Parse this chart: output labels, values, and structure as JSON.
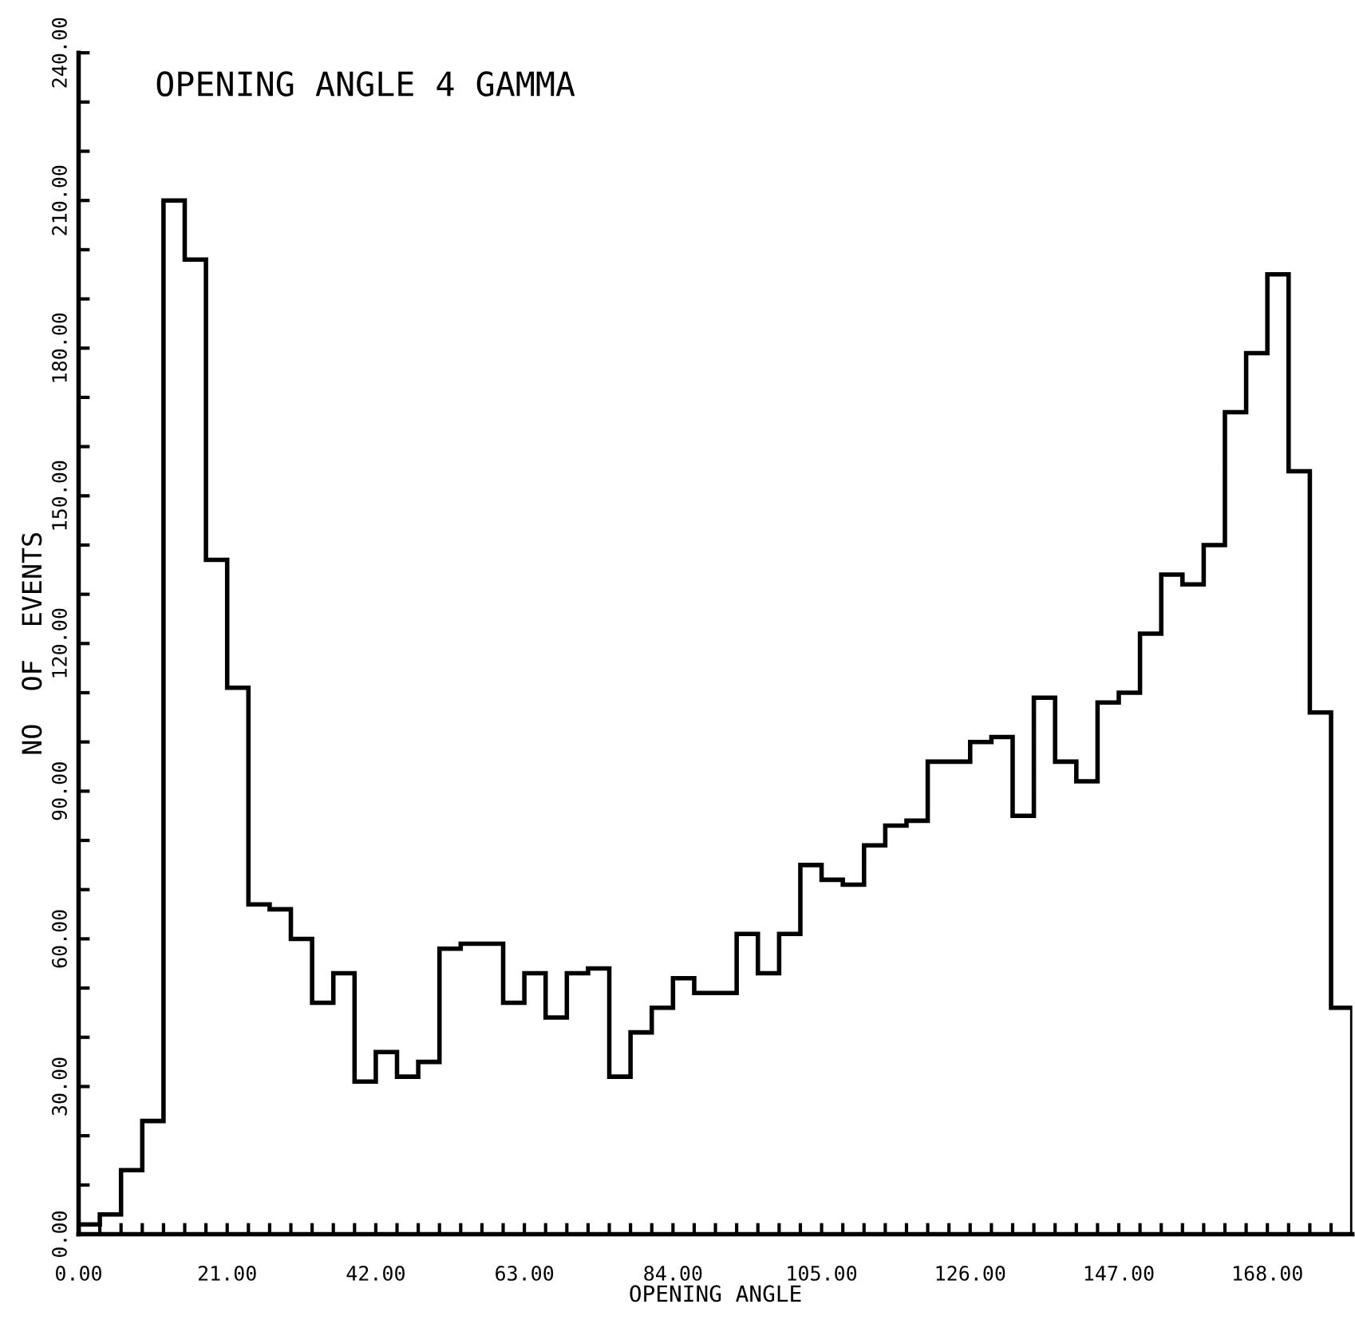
{
  "chart_data": {
    "type": "histogram",
    "title": "OPENING ANGLE 4 GAMMA",
    "xlabel": "OPENING ANGLE",
    "ylabel": "NO  OF  EVENTS",
    "bins": [
      0,
      3,
      6,
      9,
      12,
      15,
      18,
      21,
      24,
      27,
      30,
      33,
      36,
      39,
      42,
      45,
      48,
      51,
      54,
      57,
      60,
      63,
      66,
      69,
      72,
      75,
      78,
      81,
      84,
      87,
      90,
      93,
      96,
      99,
      102,
      105,
      108,
      111,
      114,
      117,
      120,
      123,
      126,
      129,
      132,
      135,
      138,
      141,
      144,
      147,
      150,
      153,
      156,
      159,
      162,
      165,
      168,
      171,
      174,
      177,
      180
    ],
    "values": [
      2,
      4,
      13,
      23,
      210,
      198,
      137,
      111,
      67,
      66,
      60,
      47,
      53,
      31,
      37,
      32,
      35,
      58,
      59,
      59,
      47,
      53,
      44,
      53,
      54,
      32,
      41,
      46,
      52,
      49,
      49,
      61,
      53,
      61,
      75,
      72,
      71,
      79,
      83,
      84,
      96,
      96,
      100,
      101,
      85,
      109,
      96,
      92,
      108,
      110,
      122,
      134,
      132,
      140,
      167,
      179,
      195,
      155,
      106,
      46
    ],
    "color": "#000000",
    "xlim": [
      0,
      180
    ],
    "ylim": [
      0,
      240
    ],
    "xticks": [
      {
        "value": 0,
        "label": "0.00"
      },
      {
        "value": 3,
        "label": null
      },
      {
        "value": 6,
        "label": null
      },
      {
        "value": 9,
        "label": null
      },
      {
        "value": 12,
        "label": null
      },
      {
        "value": 15,
        "label": null
      },
      {
        "value": 18,
        "label": null
      },
      {
        "value": 21,
        "label": "21.00"
      },
      {
        "value": 24,
        "label": null
      },
      {
        "value": 27,
        "label": null
      },
      {
        "value": 30,
        "label": null
      },
      {
        "value": 33,
        "label": null
      },
      {
        "value": 36,
        "label": null
      },
      {
        "value": 39,
        "label": null
      },
      {
        "value": 42,
        "label": "42.00"
      },
      {
        "value": 45,
        "label": null
      },
      {
        "value": 48,
        "label": null
      },
      {
        "value": 51,
        "label": null
      },
      {
        "value": 54,
        "label": null
      },
      {
        "value": 57,
        "label": null
      },
      {
        "value": 60,
        "label": null
      },
      {
        "value": 63,
        "label": "63.00"
      },
      {
        "value": 66,
        "label": null
      },
      {
        "value": 69,
        "label": null
      },
      {
        "value": 72,
        "label": null
      },
      {
        "value": 75,
        "label": null
      },
      {
        "value": 78,
        "label": null
      },
      {
        "value": 81,
        "label": null
      },
      {
        "value": 84,
        "label": "84.00"
      },
      {
        "value": 87,
        "label": null
      },
      {
        "value": 90,
        "label": null
      },
      {
        "value": 93,
        "label": null
      },
      {
        "value": 96,
        "label": null
      },
      {
        "value": 99,
        "label": null
      },
      {
        "value": 102,
        "label": null
      },
      {
        "value": 105,
        "label": "105.00"
      },
      {
        "value": 108,
        "label": null
      },
      {
        "value": 111,
        "label": null
      },
      {
        "value": 114,
        "label": null
      },
      {
        "value": 117,
        "label": null
      },
      {
        "value": 120,
        "label": null
      },
      {
        "value": 123,
        "label": null
      },
      {
        "value": 126,
        "label": "126.00"
      },
      {
        "value": 129,
        "label": null
      },
      {
        "value": 132,
        "label": null
      },
      {
        "value": 135,
        "label": null
      },
      {
        "value": 138,
        "label": null
      },
      {
        "value": 141,
        "label": null
      },
      {
        "value": 144,
        "label": null
      },
      {
        "value": 147,
        "label": "147.00"
      },
      {
        "value": 150,
        "label": null
      },
      {
        "value": 153,
        "label": null
      },
      {
        "value": 156,
        "label": null
      },
      {
        "value": 159,
        "label": null
      },
      {
        "value": 162,
        "label": null
      },
      {
        "value": 165,
        "label": null
      },
      {
        "value": 168,
        "label": "168.00"
      },
      {
        "value": 171,
        "label": null
      },
      {
        "value": 174,
        "label": null
      },
      {
        "value": 177,
        "label": null
      }
    ],
    "yticks": [
      {
        "value": 0,
        "label": "0.00"
      },
      {
        "value": 10,
        "label": null
      },
      {
        "value": 20,
        "label": null
      },
      {
        "value": 30,
        "label": "30.00"
      },
      {
        "value": 40,
        "label": null
      },
      {
        "value": 50,
        "label": null
      },
      {
        "value": 60,
        "label": "60.00"
      },
      {
        "value": 70,
        "label": null
      },
      {
        "value": 80,
        "label": null
      },
      {
        "value": 90,
        "label": "90.00"
      },
      {
        "value": 100,
        "label": null
      },
      {
        "value": 110,
        "label": null
      },
      {
        "value": 120,
        "label": "120.00"
      },
      {
        "value": 130,
        "label": null
      },
      {
        "value": 140,
        "label": null
      },
      {
        "value": 150,
        "label": "150.00"
      },
      {
        "value": 160,
        "label": null
      },
      {
        "value": 170,
        "label": null
      },
      {
        "value": 180,
        "label": "180.00"
      },
      {
        "value": 190,
        "label": null
      },
      {
        "value": 200,
        "label": null
      },
      {
        "value": 210,
        "label": "210.00"
      },
      {
        "value": 220,
        "label": null
      },
      {
        "value": 230,
        "label": null
      },
      {
        "value": 240,
        "label": "240.00"
      }
    ],
    "grid": false
  }
}
